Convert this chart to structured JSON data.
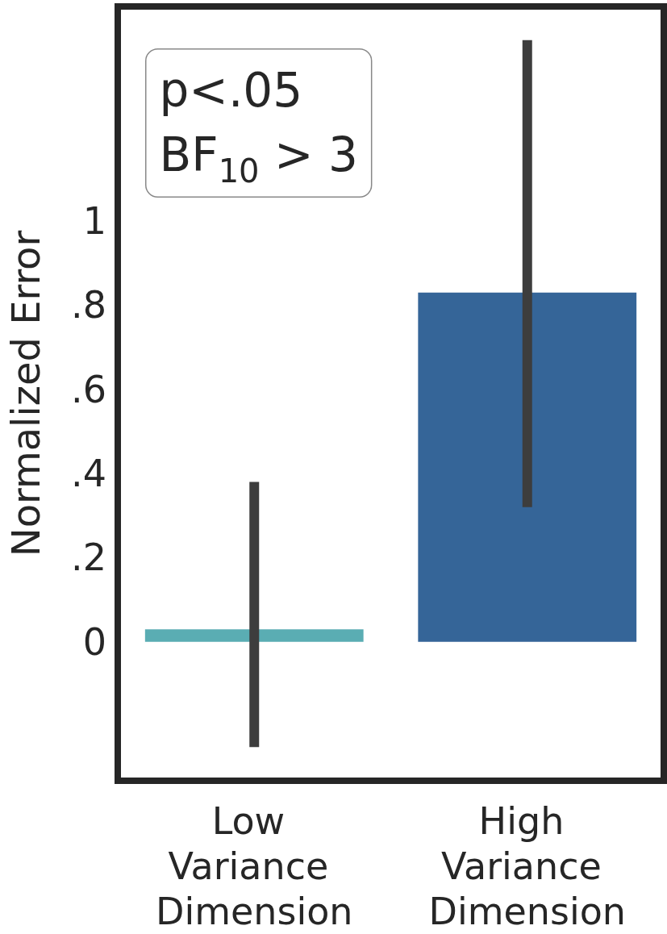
{
  "chart_data": {
    "type": "bar",
    "ylabel": "Normalized Error",
    "categories": [
      "Low Variance Dimension",
      "High Variance Dimension"
    ],
    "values": [
      0.03,
      0.83
    ],
    "colors": [
      "#5aadb3",
      "#356598"
    ],
    "errors": [
      [
        -0.25,
        0.38
      ],
      [
        0.32,
        1.43
      ]
    ],
    "ylim": [
      -0.33,
      1.51
    ],
    "yticks": [
      0,
      {
        "value": 0.2,
        "label": ".2"
      },
      {
        "value": 0.4,
        "label": ".4"
      },
      {
        "value": 0.6,
        "label": ".6"
      },
      {
        "value": 0.8,
        "label": ".8"
      },
      1
    ],
    "annotations": [
      "p<.05",
      "BF$_{10}$ > 3"
    ],
    "grid": false
  }
}
